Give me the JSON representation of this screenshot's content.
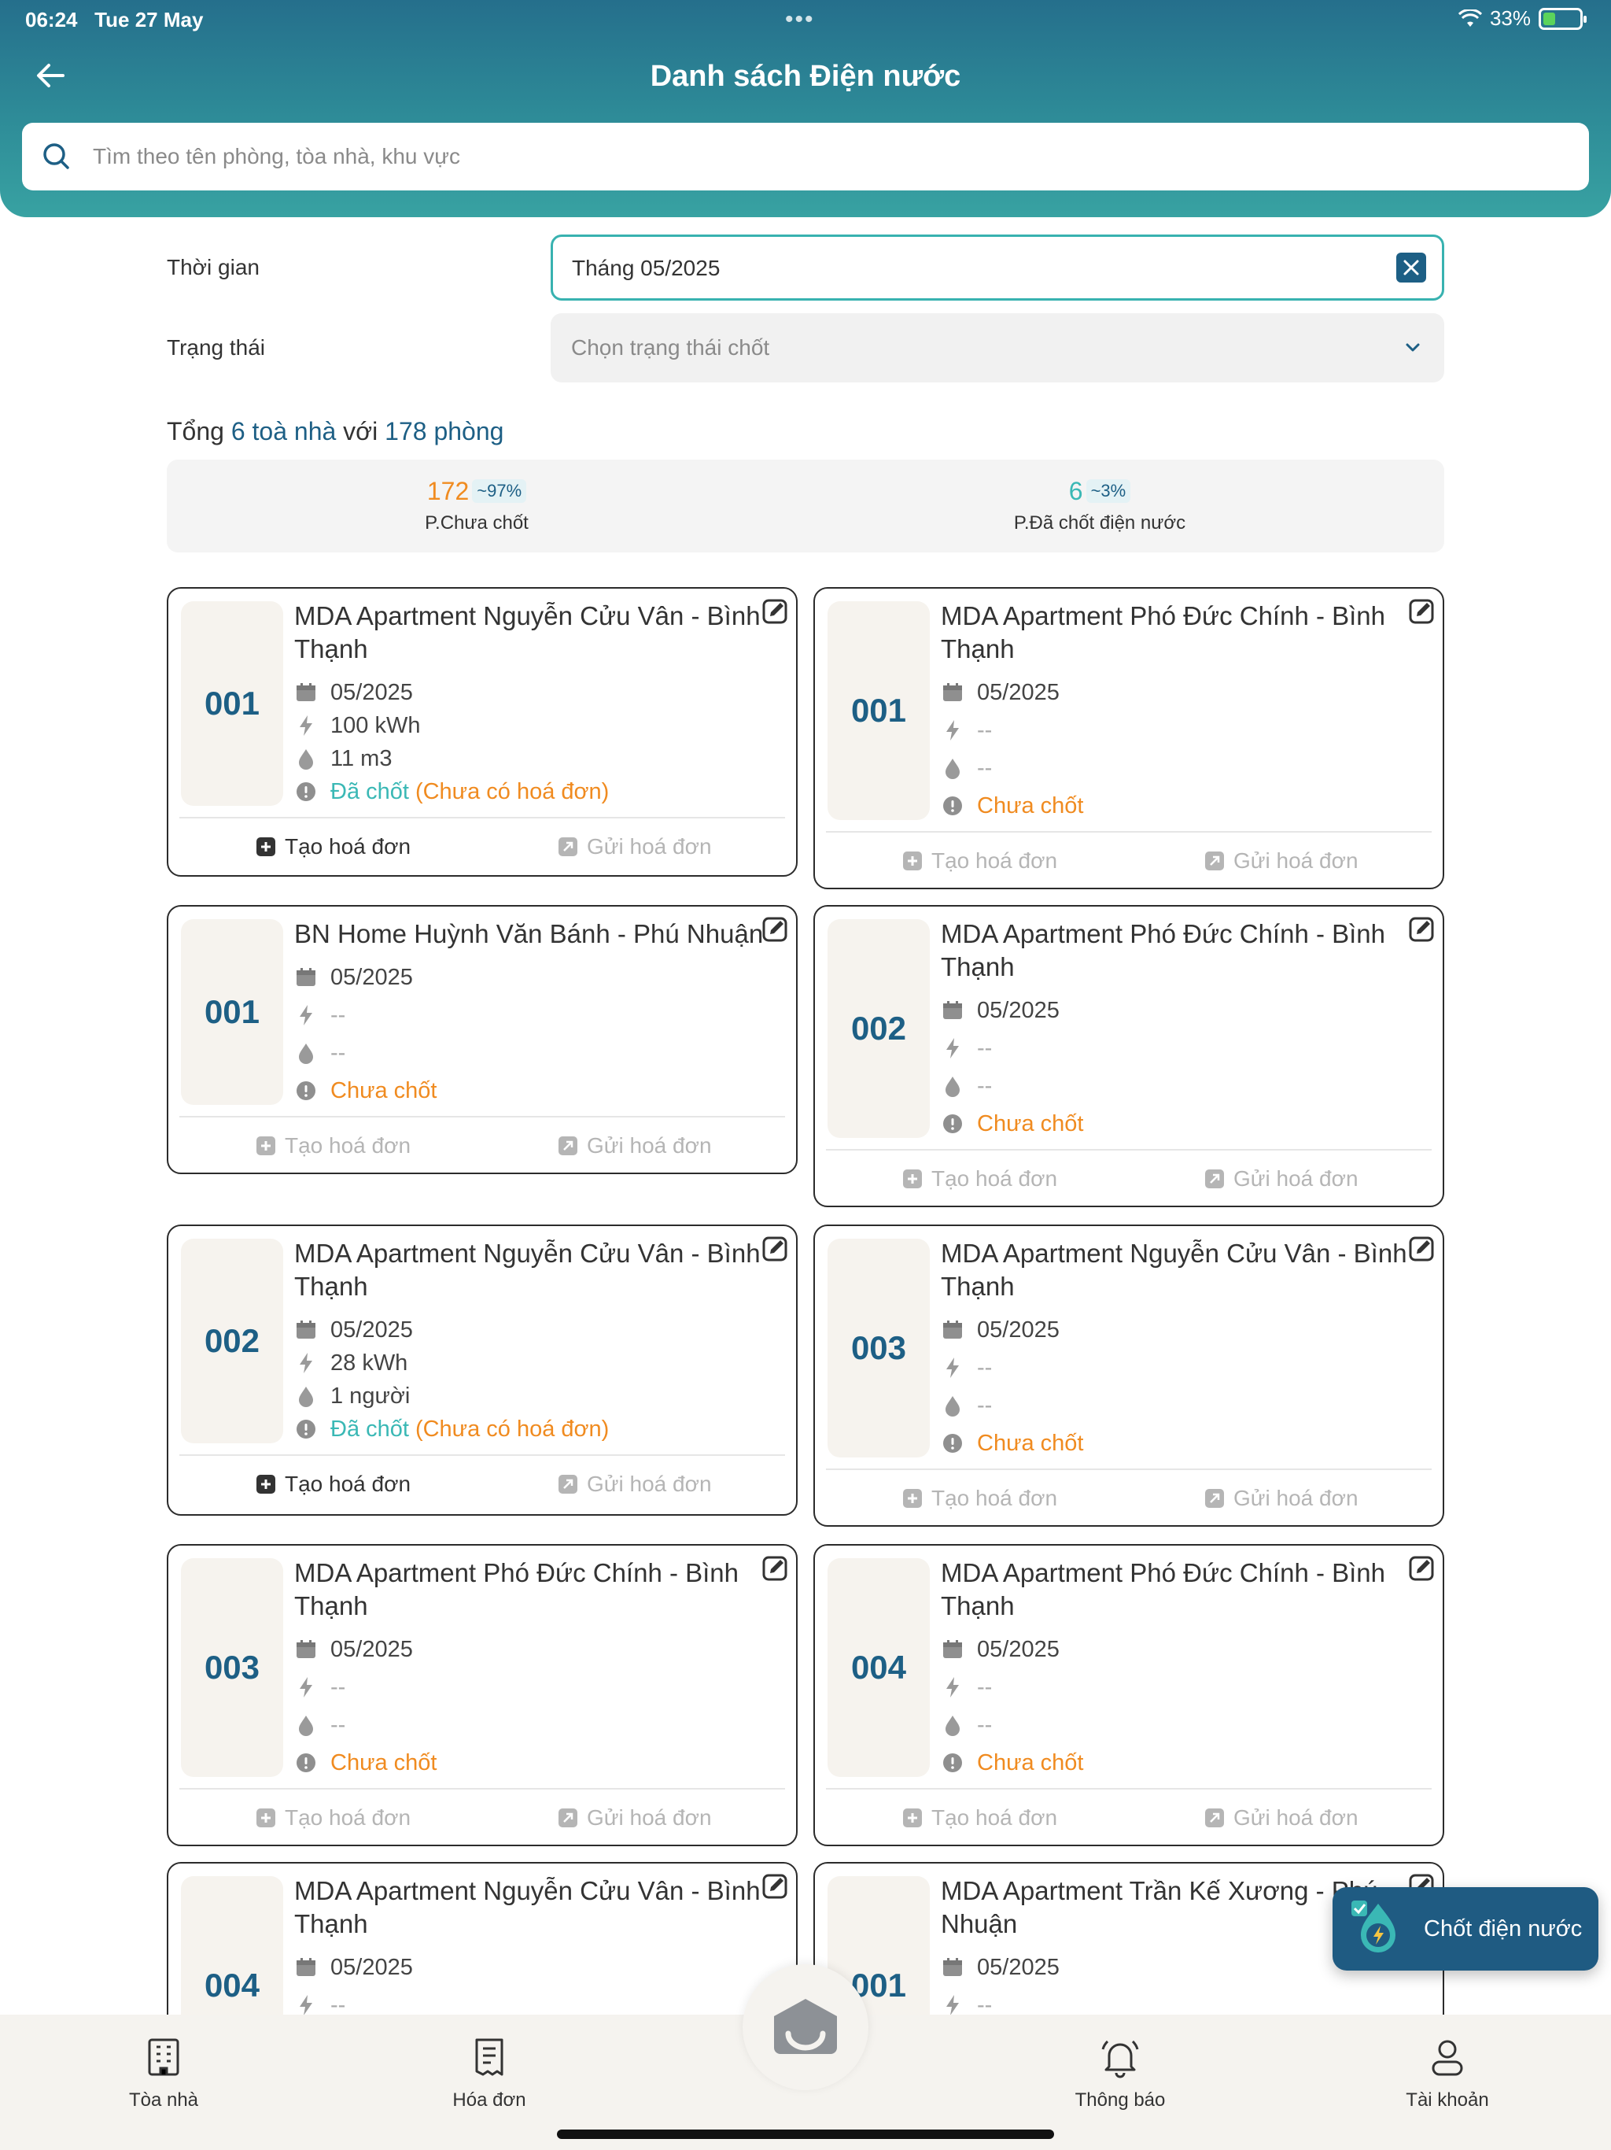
{
  "status_bar": {
    "time": "06:24",
    "date": "Tue 27 May",
    "battery": "33%",
    "battery_level": 0.33
  },
  "header": {
    "title": "Danh sách Điện nước",
    "back_icon": "arrow-left-icon"
  },
  "search": {
    "placeholder": "Tìm theo tên phòng, tòa nhà, khu vực",
    "value": ""
  },
  "filters": {
    "time_label": "Thời gian",
    "time_value": "Tháng 05/2025",
    "status_label": "Trạng thái",
    "status_placeholder": "Chọn trạng thái chốt"
  },
  "summary": {
    "prefix": "Tổng",
    "buildings": "6 toà nhà",
    "middle": "với",
    "rooms": "178 phòng"
  },
  "stats": [
    {
      "value": "172",
      "percent": "~97%",
      "label": "P.Chưa chốt",
      "color": "#f08b20"
    },
    {
      "value": "6",
      "percent": "~3%",
      "label": "P.Đã chốt điện nước",
      "color": "#3ab8b5"
    }
  ],
  "actions": {
    "create_invoice": "Tạo hoá đơn",
    "send_invoice": "Gửi hoá đơn"
  },
  "status_labels": {
    "done": "Đã chốt",
    "no_invoice": "(Chưa có hoá đơn)",
    "pending": "Chưa chốt"
  },
  "cards": [
    {
      "room": "001",
      "building": "MDA Apartment Nguyễn Cửu Vân - Bình Thạnh",
      "period": "05/2025",
      "electric": "100  kWh",
      "water": "11  m3",
      "closed": true
    },
    {
      "room": "001",
      "building": "MDA Apartment Phó Đức Chính - Bình Thạnh",
      "period": "05/2025",
      "electric": "--",
      "water": "--",
      "closed": false
    },
    {
      "room": "001",
      "building": "BN Home Huỳnh Văn Bánh - Phú Nhuận",
      "period": "05/2025",
      "electric": "--",
      "water": "--",
      "closed": false
    },
    {
      "room": "002",
      "building": "MDA Apartment Phó Đức Chính - Bình Thạnh",
      "period": "05/2025",
      "electric": "--",
      "water": "--",
      "closed": false
    },
    {
      "room": "002",
      "building": "MDA Apartment Nguyễn Cửu Vân - Bình Thạnh",
      "period": "05/2025",
      "electric": "28  kWh",
      "water": "1  người",
      "closed": true
    },
    {
      "room": "003",
      "building": "MDA Apartment Nguyễn Cửu Vân - Bình Thạnh",
      "period": "05/2025",
      "electric": "--",
      "water": "--",
      "closed": false
    },
    {
      "room": "003",
      "building": "MDA Apartment Phó Đức Chính - Bình Thạnh",
      "period": "05/2025",
      "electric": "--",
      "water": "--",
      "closed": false
    },
    {
      "room": "004",
      "building": "MDA Apartment Phó Đức Chính - Bình Thạnh",
      "period": "05/2025",
      "electric": "--",
      "water": "--",
      "closed": false
    },
    {
      "room": "004",
      "building": "MDA Apartment Nguyễn Cửu Vân - Bình Thạnh",
      "period": "05/2025",
      "electric": "--",
      "water": "",
      "closed": false
    },
    {
      "room": "001",
      "building": "MDA Apartment Trần Kế Xương - Phú Nhuận",
      "period": "05/2025",
      "electric": "--",
      "water": "",
      "closed": false
    }
  ],
  "fab": {
    "label": "Chốt điện nước",
    "icon": "lightning-drop-icon"
  },
  "bottom_nav": [
    {
      "label": "Tòa nhà",
      "icon": "building-icon"
    },
    {
      "label": "Hóa đơn",
      "icon": "invoice-icon"
    },
    {
      "label": "",
      "icon": "home-center-icon"
    },
    {
      "label": "Thông báo",
      "icon": "bell-icon"
    },
    {
      "label": "Tài khoản",
      "icon": "user-icon"
    }
  ],
  "colors": {
    "primary": "#1d5f85",
    "accent": "#38b2b0",
    "pending": "#f08b20",
    "done": "#3ab8b5"
  }
}
